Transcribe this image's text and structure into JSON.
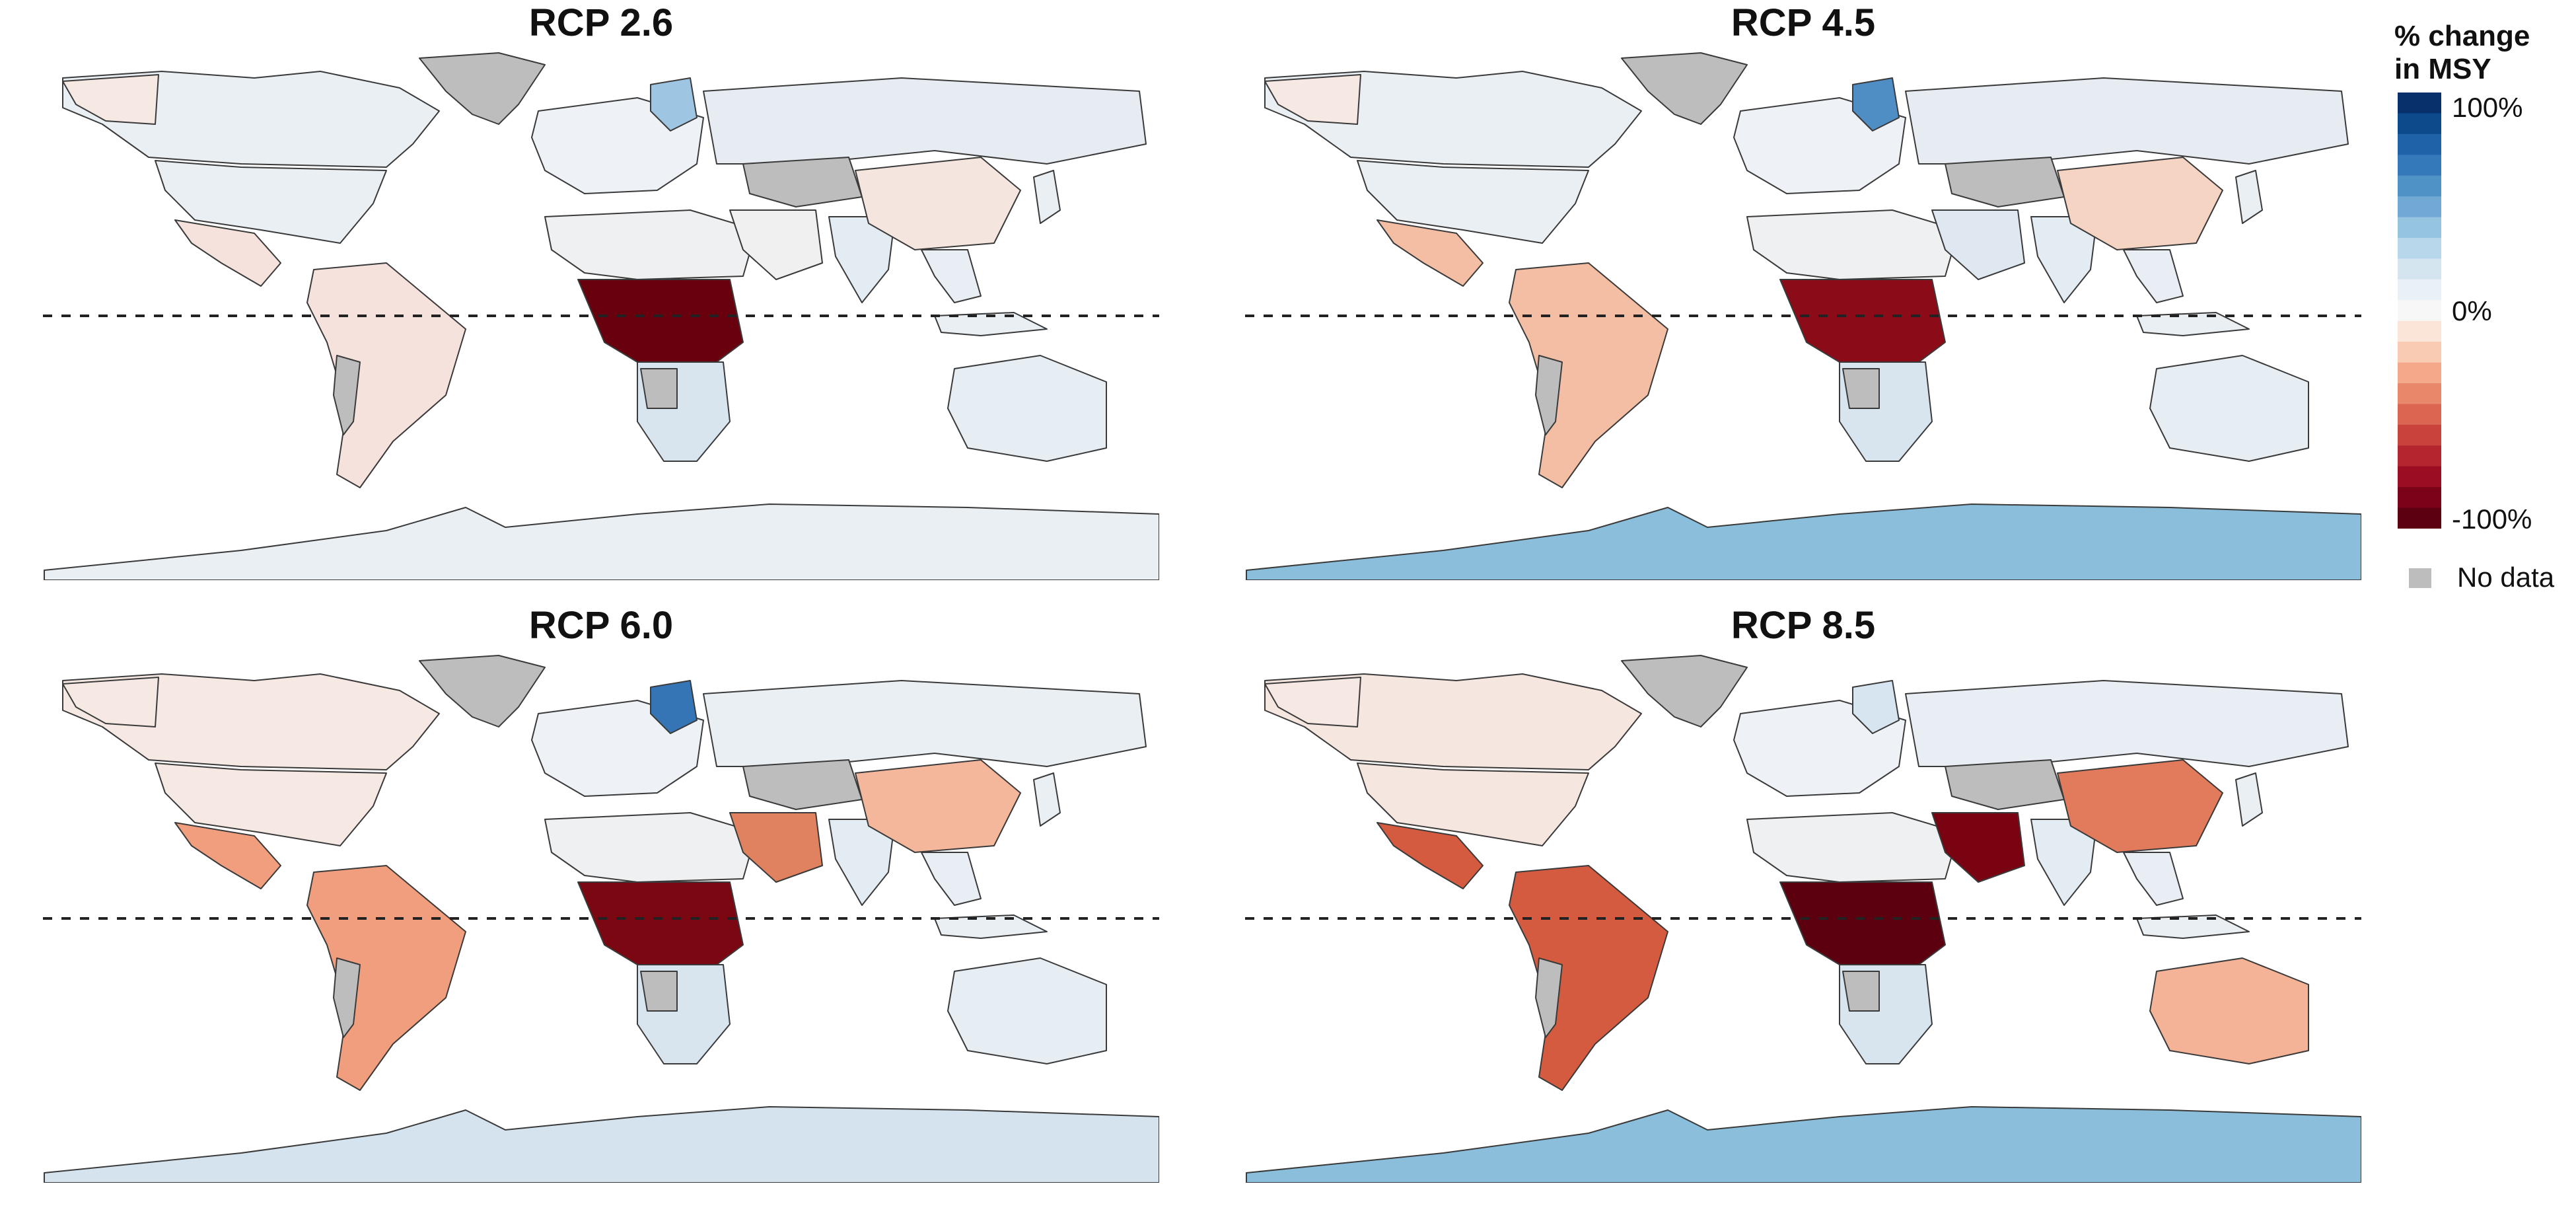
{
  "panels": [
    {
      "title": "RCP 2.6",
      "antarctica_color": "#eaeff3",
      "north_america_color": "#eaeff3",
      "russia_color": "#e6ecf2",
      "brazil_color": "#f6e2dc",
      "central_africa_color": "#69000d",
      "arabia_color": "#f0f0f0",
      "china_color": "#f5e5df",
      "australia_color": "#e6edf3",
      "europe_highlight_color": "#9ec6e2"
    },
    {
      "title": "RCP 4.5",
      "antarctica_color": "#8bbeda",
      "north_america_color": "#eaeff3",
      "russia_color": "#e6ecf2",
      "brazil_color": "#f3bea4",
      "central_africa_color": "#8c0b18",
      "arabia_color": "#dfe8f1",
      "china_color": "#f6d4c3",
      "australia_color": "#e6edf3",
      "europe_highlight_color": "#4e8ec4"
    },
    {
      "title": "RCP 6.0",
      "antarctica_color": "#d4e3ee",
      "north_america_color": "#f6e9e4",
      "russia_color": "#eaeff3",
      "brazil_color": "#f09e7d",
      "central_africa_color": "#7b0713",
      "arabia_color": "#e0825f",
      "china_color": "#f4b79c",
      "australia_color": "#e6edf3",
      "europe_highlight_color": "#3575b5"
    },
    {
      "title": "RCP 8.5",
      "antarctica_color": "#8bbeda",
      "north_america_color": "#f5e6e0",
      "russia_color": "#e8eef3",
      "brazil_color": "#d45a40",
      "central_africa_color": "#5c0010",
      "arabia_color": "#7a0312",
      "china_color": "#e27a5c",
      "australia_color": "#f4b396",
      "europe_highlight_color": "#d7e5f0"
    }
  ],
  "legend": {
    "title_line1": "% change",
    "title_line2": "in MSY",
    "tick_top": "100%",
    "tick_mid": "0%",
    "tick_bottom": "-100%",
    "no_data_label": "No data",
    "no_data_color": "#bdbdbd",
    "colors": [
      "#08306b",
      "#0c4a8c",
      "#1f62a8",
      "#3479b9",
      "#4f92c6",
      "#6fa9d4",
      "#94c4df",
      "#b9d7ea",
      "#d4e5f0",
      "#e9f1f6",
      "#f7f7f7",
      "#fbe4d8",
      "#f9cbb3",
      "#f4a98a",
      "#e9876a",
      "#db6551",
      "#c9423b",
      "#b42530",
      "#9b0d22",
      "#7b0319",
      "#5c0011"
    ]
  }
}
